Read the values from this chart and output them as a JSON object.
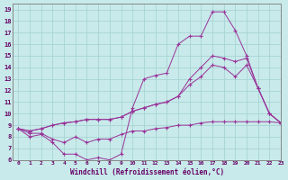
{
  "background_color": "#c8eaea",
  "grid_color": "#a8d4d4",
  "line_color": "#993399",
  "marker_color": "#993399",
  "xlim": [
    -0.5,
    23
  ],
  "ylim": [
    6,
    19.5
  ],
  "xlabel": "Windchill (Refroidissement éolien,°C)",
  "xticks": [
    0,
    1,
    2,
    3,
    4,
    5,
    6,
    7,
    8,
    9,
    10,
    11,
    12,
    13,
    14,
    15,
    16,
    17,
    18,
    19,
    20,
    21,
    22,
    23
  ],
  "yticks": [
    6,
    7,
    8,
    9,
    10,
    11,
    12,
    13,
    14,
    15,
    16,
    17,
    18,
    19
  ],
  "series": [
    [
      8.7,
      8.0,
      8.2,
      7.5,
      6.5,
      6.5,
      6.0,
      6.2,
      6.0,
      6.5,
      10.5,
      13.0,
      13.3,
      13.5,
      16.0,
      16.7,
      16.7,
      18.8,
      18.8,
      17.2,
      15.0,
      12.2,
      10.0,
      9.2
    ],
    [
      8.7,
      8.5,
      8.7,
      9.0,
      9.2,
      9.3,
      9.5,
      9.5,
      9.5,
      9.7,
      10.2,
      10.5,
      10.8,
      11.0,
      11.5,
      13.0,
      14.0,
      15.0,
      14.8,
      14.5,
      14.8,
      12.2,
      10.0,
      9.2
    ],
    [
      8.7,
      8.5,
      8.7,
      9.0,
      9.2,
      9.3,
      9.5,
      9.5,
      9.5,
      9.7,
      10.2,
      10.5,
      10.8,
      11.0,
      11.5,
      12.5,
      13.2,
      14.2,
      14.0,
      13.2,
      14.2,
      12.2,
      10.0,
      9.2
    ],
    [
      8.7,
      8.3,
      8.3,
      7.8,
      7.5,
      8.0,
      7.5,
      7.8,
      7.8,
      8.2,
      8.5,
      8.5,
      8.7,
      8.8,
      9.0,
      9.0,
      9.2,
      9.3,
      9.3,
      9.3,
      9.3,
      9.3,
      9.3,
      9.2
    ]
  ]
}
